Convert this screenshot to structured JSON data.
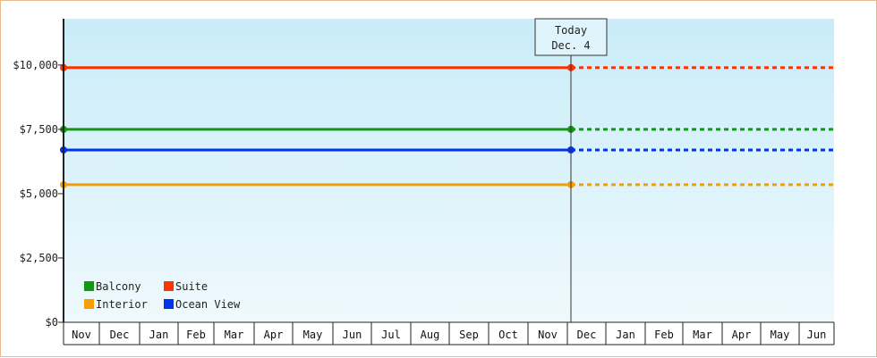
{
  "chart_data": {
    "type": "line",
    "x_months": [
      "Nov",
      "Dec",
      "Jan",
      "Feb",
      "Mar",
      "Apr",
      "May",
      "Jun",
      "Jul",
      "Aug",
      "Sep",
      "Oct",
      "Nov",
      "Dec",
      "Jan",
      "Feb",
      "Mar",
      "Apr",
      "May",
      "Jun"
    ],
    "y_ticks": [
      {
        "value": 0,
        "label": "$0"
      },
      {
        "value": 2500,
        "label": "$2,500"
      },
      {
        "value": 5000,
        "label": "$5,000"
      },
      {
        "value": 7500,
        "label": "$7,500"
      },
      {
        "value": 10000,
        "label": "$10,000"
      }
    ],
    "ylim": [
      0,
      11800
    ],
    "today": {
      "line1": "Today",
      "line2": "Dec. 4",
      "month_index": 13
    },
    "series": [
      {
        "name": "Suite",
        "color": "#ff3300",
        "value": 9900
      },
      {
        "name": "Balcony",
        "color": "#119911",
        "value": 7500
      },
      {
        "name": "Ocean View",
        "color": "#0033ee",
        "value": 6700
      },
      {
        "name": "Interior",
        "color": "#f5a000",
        "value": 5350
      }
    ],
    "legend": [
      {
        "name": "Balcony",
        "color": "#119911"
      },
      {
        "name": "Suite",
        "color": "#ff3300"
      },
      {
        "name": "Interior",
        "color": "#f5a000"
      },
      {
        "name": "Ocean View",
        "color": "#0033ee"
      }
    ],
    "legend_position": "bottom-left",
    "grid": false
  }
}
